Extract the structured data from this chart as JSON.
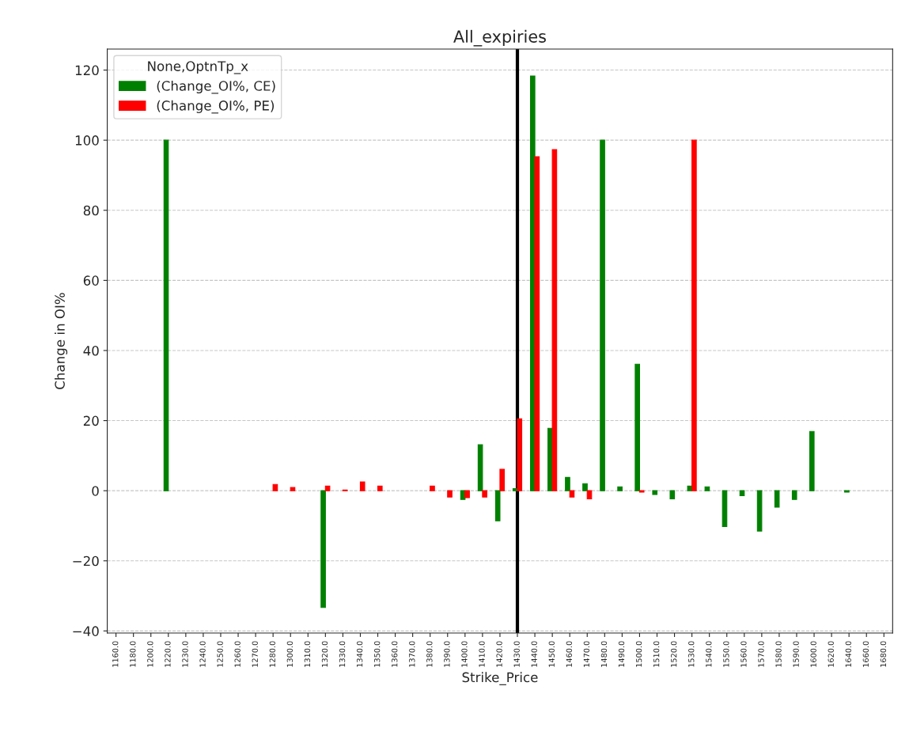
{
  "chart_data": {
    "type": "bar",
    "title": "All_expiries",
    "xlabel": "Strike_Price",
    "ylabel": "Change in OI%",
    "legend_title": "None,OptnTp_x",
    "categories": [
      "1160.0",
      "1180.0",
      "1200.0",
      "1220.0",
      "1230.0",
      "1240.0",
      "1250.0",
      "1260.0",
      "1270.0",
      "1280.0",
      "1300.0",
      "1310.0",
      "1320.0",
      "1330.0",
      "1340.0",
      "1350.0",
      "1360.0",
      "1370.0",
      "1380.0",
      "1390.0",
      "1400.0",
      "1410.0",
      "1420.0",
      "1430.0",
      "1440.0",
      "1450.0",
      "1460.0",
      "1470.0",
      "1480.0",
      "1490.0",
      "1500.0",
      "1510.0",
      "1520.0",
      "1530.0",
      "1540.0",
      "1550.0",
      "1560.0",
      "1570.0",
      "1580.0",
      "1590.0",
      "1600.0",
      "1620.0",
      "1640.0",
      "1660.0",
      "1680.0"
    ],
    "series": [
      {
        "name": "(Change_OI%, CE)",
        "color": "#008000",
        "values": [
          null,
          null,
          null,
          100,
          null,
          null,
          null,
          null,
          null,
          null,
          null,
          null,
          -33.3,
          null,
          null,
          null,
          null,
          null,
          null,
          null,
          -2.5,
          13.1,
          -8.6,
          0.6,
          118.3,
          17.8,
          3.8,
          2.0,
          100,
          1.1,
          36.1,
          -1.1,
          -2.3,
          1.3,
          1.1,
          -10.2,
          -1.4,
          -11.5,
          -4.7,
          -2.5,
          16.9,
          null,
          -0.4,
          null,
          null
        ]
      },
      {
        "name": "(Change_OI%, PE)",
        "color": "#ff0000",
        "values": [
          null,
          null,
          null,
          null,
          null,
          null,
          null,
          null,
          null,
          1.8,
          0.9,
          null,
          1.3,
          0.2,
          2.5,
          1.3,
          null,
          null,
          1.3,
          -1.8,
          -2.0,
          -1.8,
          6.1,
          20.5,
          95.3,
          97.3,
          -1.8,
          -2.3,
          null,
          null,
          -0.4,
          null,
          null,
          100,
          null,
          null,
          null,
          null,
          null,
          null,
          null,
          null,
          null,
          null,
          null
        ]
      }
    ],
    "ylim": [
      -40.6,
      126
    ],
    "yticks": [
      {
        "value": -40,
        "label": "−40"
      },
      {
        "value": -20,
        "label": "−20"
      },
      0,
      20,
      40,
      60,
      80,
      100,
      120
    ],
    "ref_lines": [
      {
        "axis": "x",
        "value": "1430.0",
        "color": "#000000"
      }
    ],
    "grid": "y",
    "legend": "top left"
  }
}
